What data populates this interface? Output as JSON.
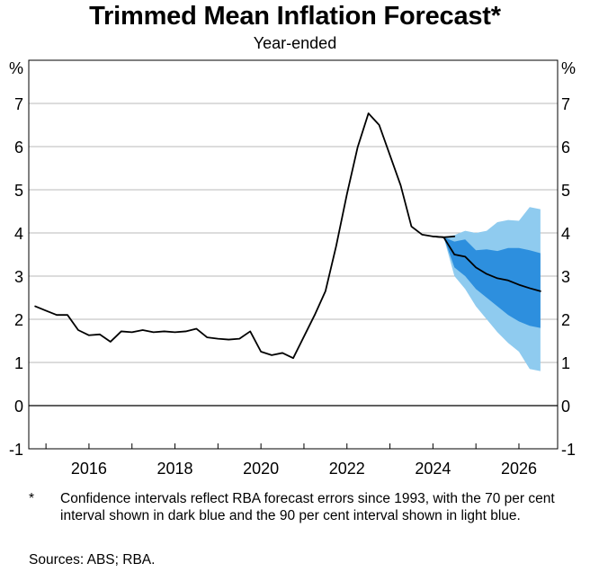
{
  "chart_data": {
    "type": "line",
    "title": "Trimmed Mean Inflation Forecast*",
    "subtitle": "Year-ended",
    "ylabel_left": "%",
    "ylabel_right": "%",
    "ylim": [
      -1,
      8
    ],
    "yticks": [
      -1,
      0,
      1,
      2,
      3,
      4,
      5,
      6,
      7
    ],
    "xlim": [
      2014.6,
      2026.9
    ],
    "xticks": [
      2016,
      2018,
      2020,
      2022,
      2024,
      2026
    ],
    "grid": true,
    "series": [
      {
        "color": "#000000",
        "x": [
          2014.75,
          2015.0,
          2015.25,
          2015.5,
          2015.75,
          2016.0,
          2016.25,
          2016.5,
          2016.75,
          2017.0,
          2017.25,
          2017.5,
          2017.75,
          2018.0,
          2018.25,
          2018.5,
          2018.75,
          2019.0,
          2019.25,
          2019.5,
          2019.75,
          2020.0,
          2020.25,
          2020.5,
          2020.75,
          2021.0,
          2021.25,
          2021.5,
          2021.75,
          2022.0,
          2022.25,
          2022.5,
          2022.75,
          2023.0,
          2023.25,
          2023.5,
          2023.75,
          2024.0,
          2024.25,
          2024.5
        ],
        "y": [
          2.3,
          2.2,
          2.1,
          2.1,
          1.75,
          1.63,
          1.65,
          1.48,
          1.72,
          1.7,
          1.75,
          1.7,
          1.72,
          1.7,
          1.72,
          1.78,
          1.58,
          1.55,
          1.53,
          1.55,
          1.72,
          1.25,
          1.17,
          1.22,
          1.1,
          1.6,
          2.1,
          2.65,
          3.7,
          4.9,
          5.99,
          6.77,
          6.5,
          5.8,
          5.1,
          4.15,
          3.96,
          3.92,
          3.9,
          3.92
        ]
      },
      {
        "name": "Forecast",
        "color": "#000000",
        "x": [
          2024.0,
          2024.25,
          2024.5,
          2024.75,
          2025.0,
          2025.25,
          2025.5,
          2025.75,
          2026.0,
          2026.25,
          2026.5
        ],
        "y": [
          3.92,
          3.9,
          3.5,
          3.45,
          3.2,
          3.05,
          2.95,
          2.9,
          2.8,
          2.72,
          2.65
        ]
      }
    ],
    "bands": [
      {
        "name": "90 per cent interval",
        "color": "#8fcbef",
        "x": [
          2024.0,
          2024.25,
          2024.5,
          2024.75,
          2025.0,
          2025.25,
          2025.5,
          2025.75,
          2026.0,
          2026.25,
          2026.5
        ],
        "lower": [
          3.92,
          3.9,
          3.0,
          2.7,
          2.3,
          2.0,
          1.7,
          1.45,
          1.25,
          0.85,
          0.8
        ],
        "upper": [
          3.92,
          3.9,
          3.95,
          4.05,
          4.0,
          4.05,
          4.25,
          4.3,
          4.28,
          4.6,
          4.55
        ]
      },
      {
        "name": "70 per cent interval",
        "color": "#2d8fde",
        "x": [
          2024.0,
          2024.25,
          2024.5,
          2024.75,
          2025.0,
          2025.25,
          2025.5,
          2025.75,
          2026.0,
          2026.25,
          2026.5
        ],
        "lower": [
          3.92,
          3.9,
          3.2,
          3.0,
          2.7,
          2.5,
          2.3,
          2.1,
          1.95,
          1.85,
          1.8
        ],
        "upper": [
          3.92,
          3.9,
          3.8,
          3.85,
          3.6,
          3.62,
          3.58,
          3.65,
          3.65,
          3.6,
          3.53
        ]
      }
    ]
  },
  "footnote": {
    "marker": "*",
    "text": "Confidence intervals reflect RBA forecast errors since 1993, with the 70 per cent interval shown in dark blue and the 90 per cent interval shown in light blue."
  },
  "sources": "Sources: ABS; RBA."
}
